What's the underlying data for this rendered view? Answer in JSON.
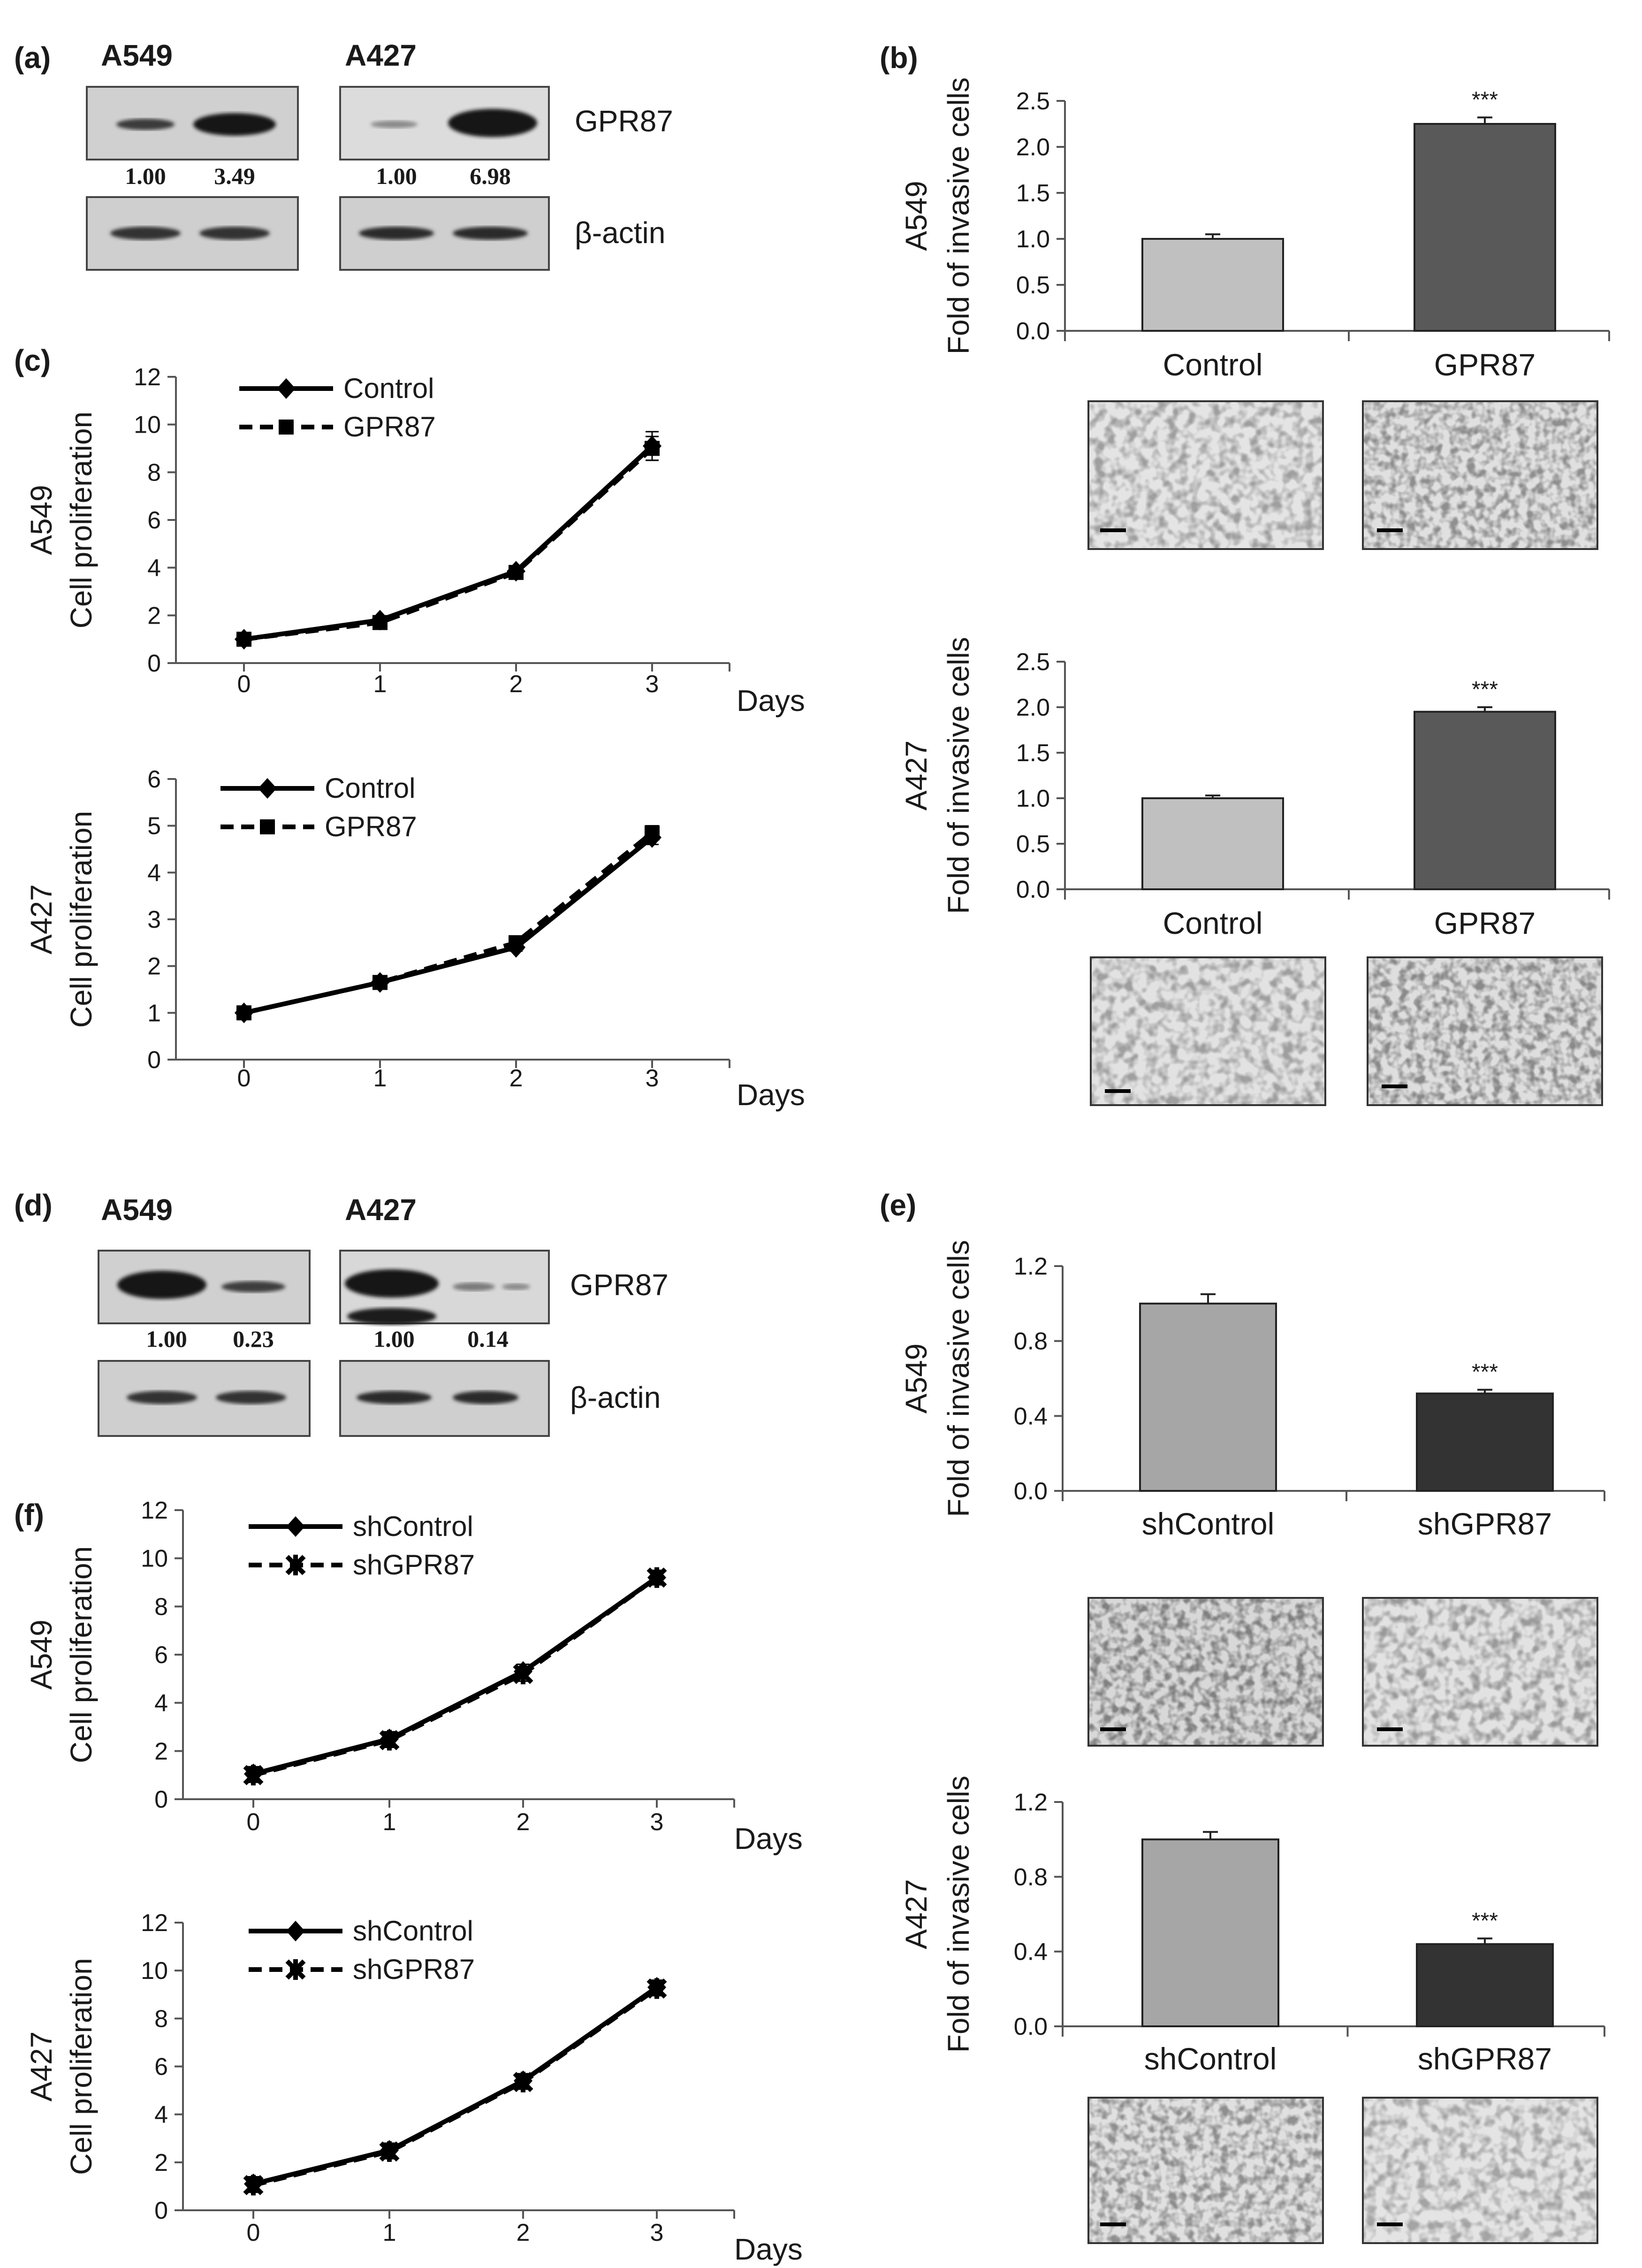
{
  "panels": {
    "a": {
      "label": "(a)",
      "blots": [
        {
          "cell": "A549",
          "ratios": [
            "1.00",
            "3.49"
          ]
        },
        {
          "cell": "A427",
          "ratios": [
            "1.00",
            "6.98"
          ]
        }
      ],
      "protein": "GPR87",
      "loading": "β-actin"
    },
    "d": {
      "label": "(d)",
      "blots": [
        {
          "cell": "A549",
          "ratios": [
            "1.00",
            "0.23"
          ]
        },
        {
          "cell": "A427",
          "ratios": [
            "1.00",
            "0.14"
          ]
        }
      ],
      "protein": "GPR87",
      "loading": "β-actin"
    },
    "b_label": "(b)",
    "c_label": "(c)",
    "e_label": "(e)",
    "f_label": "(f)"
  },
  "chart_data": [
    {
      "id": "b-a549",
      "panel": "b",
      "type": "bar",
      "cell": "A549",
      "ylabel": "Fold of invasive cells",
      "categories": [
        "Control",
        "GPR87"
      ],
      "values": [
        1.0,
        2.25
      ],
      "errors": [
        0.05,
        0.07
      ],
      "colors": [
        "#c0c0c0",
        "#595959"
      ],
      "yticks": [
        0.0,
        0.5,
        1.0,
        1.5,
        2.0,
        2.5
      ],
      "ylim": [
        0,
        2.5
      ],
      "significance": [
        "",
        "***"
      ]
    },
    {
      "id": "b-a427",
      "panel": "b",
      "type": "bar",
      "cell": "A427",
      "ylabel": "Fold of invasive cells",
      "categories": [
        "Control",
        "GPR87"
      ],
      "values": [
        1.0,
        1.95
      ],
      "errors": [
        0.03,
        0.05
      ],
      "colors": [
        "#c0c0c0",
        "#595959"
      ],
      "yticks": [
        0.0,
        0.5,
        1.0,
        1.5,
        2.0,
        2.5
      ],
      "ylim": [
        0,
        2.5
      ],
      "significance": [
        "",
        "***"
      ]
    },
    {
      "id": "e-a549",
      "panel": "e",
      "type": "bar",
      "cell": "A549",
      "ylabel": "Fold of invasive cells",
      "categories": [
        "shControl",
        "shGPR87"
      ],
      "values": [
        1.0,
        0.52
      ],
      "errors": [
        0.05,
        0.02
      ],
      "colors": [
        "#a6a6a6",
        "#333333"
      ],
      "yticks": [
        0.0,
        0.4,
        0.8,
        1.2
      ],
      "ylim": [
        0,
        1.2
      ],
      "significance": [
        "",
        "***"
      ]
    },
    {
      "id": "e-a427",
      "panel": "e",
      "type": "bar",
      "cell": "A427",
      "ylabel": "Fold of invasive cells",
      "categories": [
        "shControl",
        "shGPR87"
      ],
      "values": [
        1.0,
        0.44
      ],
      "errors": [
        0.04,
        0.03
      ],
      "colors": [
        "#a6a6a6",
        "#333333"
      ],
      "yticks": [
        0.0,
        0.4,
        0.8,
        1.2
      ],
      "ylim": [
        0,
        1.2
      ],
      "significance": [
        "",
        "***"
      ]
    },
    {
      "id": "c-a549",
      "panel": "c",
      "type": "line",
      "cell": "A549",
      "ylabel": "Cell proliferation",
      "xlabel": "Days",
      "x": [
        0,
        1,
        2,
        3
      ],
      "xticks": [
        0,
        1,
        2,
        3
      ],
      "yticks": [
        0,
        2,
        4,
        6,
        8,
        10,
        12
      ],
      "ylim": [
        0,
        12
      ],
      "series": [
        {
          "name": "Control",
          "values": [
            1.0,
            1.8,
            3.85,
            9.1
          ],
          "errors": [
            0.05,
            0.1,
            0.15,
            0.6
          ],
          "style": "solid",
          "marker": "diamond"
        },
        {
          "name": "GPR87",
          "values": [
            1.0,
            1.7,
            3.8,
            9.0
          ],
          "errors": [
            0.05,
            0.1,
            0.15,
            0.5
          ],
          "style": "dashed",
          "marker": "square"
        }
      ]
    },
    {
      "id": "c-a427",
      "panel": "c",
      "type": "line",
      "cell": "A427",
      "ylabel": "Cell proliferation",
      "xlabel": "Days",
      "x": [
        0,
        1,
        2,
        3
      ],
      "xticks": [
        0,
        1,
        2,
        3
      ],
      "yticks": [
        0,
        1,
        2,
        3,
        4,
        5,
        6
      ],
      "ylim": [
        0,
        6
      ],
      "series": [
        {
          "name": "Control",
          "values": [
            1.0,
            1.65,
            2.4,
            4.75
          ],
          "errors": [
            0.03,
            0.05,
            0.08,
            0.15
          ],
          "style": "solid",
          "marker": "diamond"
        },
        {
          "name": "GPR87",
          "values": [
            1.0,
            1.65,
            2.5,
            4.85
          ],
          "errors": [
            0.03,
            0.05,
            0.08,
            0.15
          ],
          "style": "dashed",
          "marker": "square"
        }
      ]
    },
    {
      "id": "f-a549",
      "panel": "f",
      "type": "line",
      "cell": "A549",
      "ylabel": "Cell proliferation",
      "xlabel": "Days",
      "x": [
        0,
        1,
        2,
        3
      ],
      "xticks": [
        0,
        1,
        2,
        3
      ],
      "yticks": [
        0,
        2,
        4,
        6,
        8,
        10,
        12
      ],
      "ylim": [
        0,
        12
      ],
      "series": [
        {
          "name": "shControl",
          "values": [
            1.05,
            2.5,
            5.3,
            9.2
          ],
          "errors": [
            0.3,
            0.3,
            0.3,
            0.3
          ],
          "style": "solid",
          "marker": "diamond"
        },
        {
          "name": "shGPR87",
          "values": [
            1.0,
            2.45,
            5.2,
            9.2
          ],
          "errors": [
            0.3,
            0.3,
            0.3,
            0.3
          ],
          "style": "dashed",
          "marker": "cross"
        }
      ]
    },
    {
      "id": "f-a427",
      "panel": "f",
      "type": "line",
      "cell": "A427",
      "ylabel": "Cell proliferation",
      "xlabel": "Days",
      "x": [
        0,
        1,
        2,
        3
      ],
      "xticks": [
        0,
        1,
        2,
        3
      ],
      "yticks": [
        0,
        2,
        4,
        6,
        8,
        10,
        12
      ],
      "ylim": [
        0,
        12
      ],
      "series": [
        {
          "name": "shControl",
          "values": [
            1.1,
            2.5,
            5.4,
            9.3
          ],
          "errors": [
            0.3,
            0.3,
            0.3,
            0.3
          ],
          "style": "solid",
          "marker": "diamond"
        },
        {
          "name": "shGPR87",
          "values": [
            1.05,
            2.45,
            5.35,
            9.25
          ],
          "errors": [
            0.3,
            0.3,
            0.3,
            0.3
          ],
          "style": "dashed",
          "marker": "cross"
        }
      ]
    }
  ]
}
